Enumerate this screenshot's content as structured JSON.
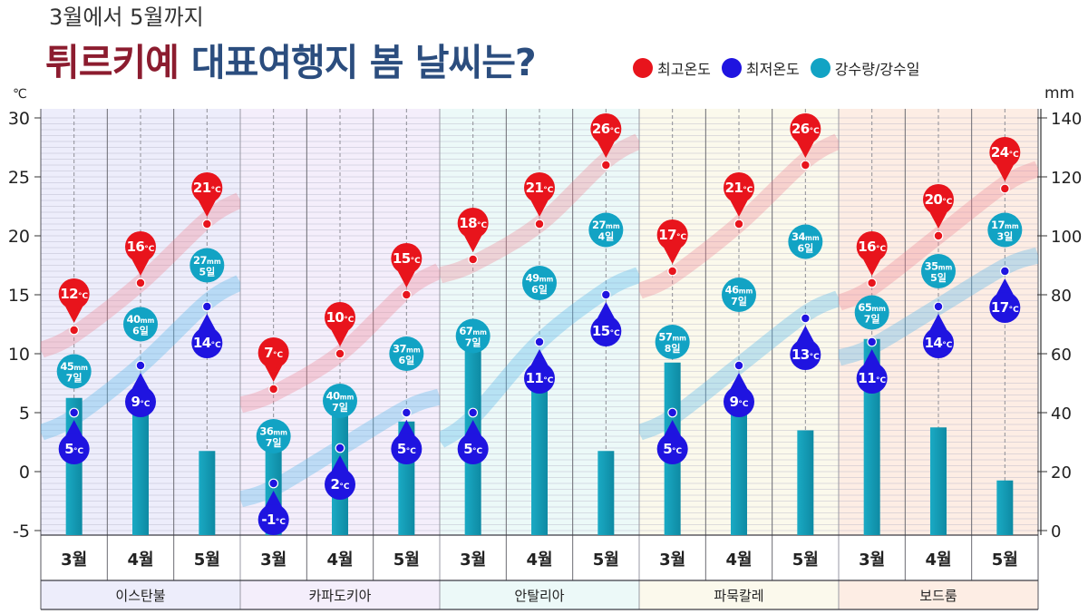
{
  "chart_data": {
    "type": "bar",
    "subtitle": "3월에서 5월까지",
    "title": {
      "highlight": "튀르키예",
      "rest": "대표여행지 봄 날씨는?",
      "highlight_color": "#8c1c2f",
      "rest_color": "#2b4d7e"
    },
    "legend": [
      {
        "label": "최고온도",
        "color": "#e8141c"
      },
      {
        "label": "최저온도",
        "color": "#1f14e0"
      },
      {
        "label": "강수량/강수일",
        "color": "#12a3c4"
      }
    ],
    "y_left": {
      "label": "℃",
      "range": [
        -5,
        30
      ],
      "ticks": [
        30,
        25,
        20,
        15,
        10,
        5,
        0,
        -5
      ]
    },
    "y_right": {
      "label": "mm",
      "range": [
        0,
        140
      ],
      "ticks": [
        140,
        120,
        100,
        80,
        60,
        40,
        20,
        0
      ]
    },
    "units": {
      "temp": "°C",
      "rain": "mm",
      "days": "일"
    },
    "months": [
      "3월",
      "4월",
      "5월"
    ],
    "grid": true,
    "series_colors": {
      "max_temp": "#e8141c",
      "min_temp": "#1f14e0",
      "rain": "#12a3c4",
      "rain_bar": "#139db6"
    },
    "cities": [
      {
        "name": "이스탄불",
        "bg": "#ededfb",
        "max_temp": [
          12,
          16,
          21
        ],
        "min_temp": [
          5,
          9,
          14
        ],
        "rain_mm": [
          45,
          40,
          27
        ],
        "rain_days": [
          7,
          6,
          5
        ]
      },
      {
        "name": "카파도키아",
        "bg": "#f4eefb",
        "max_temp": [
          7,
          10,
          15
        ],
        "min_temp": [
          -1,
          2,
          5
        ],
        "rain_mm": [
          36,
          40,
          37
        ],
        "rain_days": [
          7,
          7,
          6
        ]
      },
      {
        "name": "안탈리아",
        "bg": "#ecf9f8",
        "max_temp": [
          18,
          21,
          26
        ],
        "min_temp": [
          5,
          11,
          15
        ],
        "rain_mm": [
          67,
          49,
          27
        ],
        "rain_days": [
          7,
          6,
          4
        ]
      },
      {
        "name": "파묵칼레",
        "bg": "#fbf9ec",
        "max_temp": [
          17,
          21,
          26
        ],
        "min_temp": [
          5,
          9,
          13
        ],
        "rain_mm": [
          57,
          46,
          34
        ],
        "rain_days": [
          8,
          7,
          6
        ]
      },
      {
        "name": "보드룸",
        "bg": "#fdede4",
        "max_temp": [
          16,
          20,
          24
        ],
        "min_temp": [
          11,
          14,
          17
        ],
        "rain_mm": [
          65,
          35,
          17
        ],
        "rain_days": [
          7,
          5,
          3
        ]
      }
    ]
  }
}
